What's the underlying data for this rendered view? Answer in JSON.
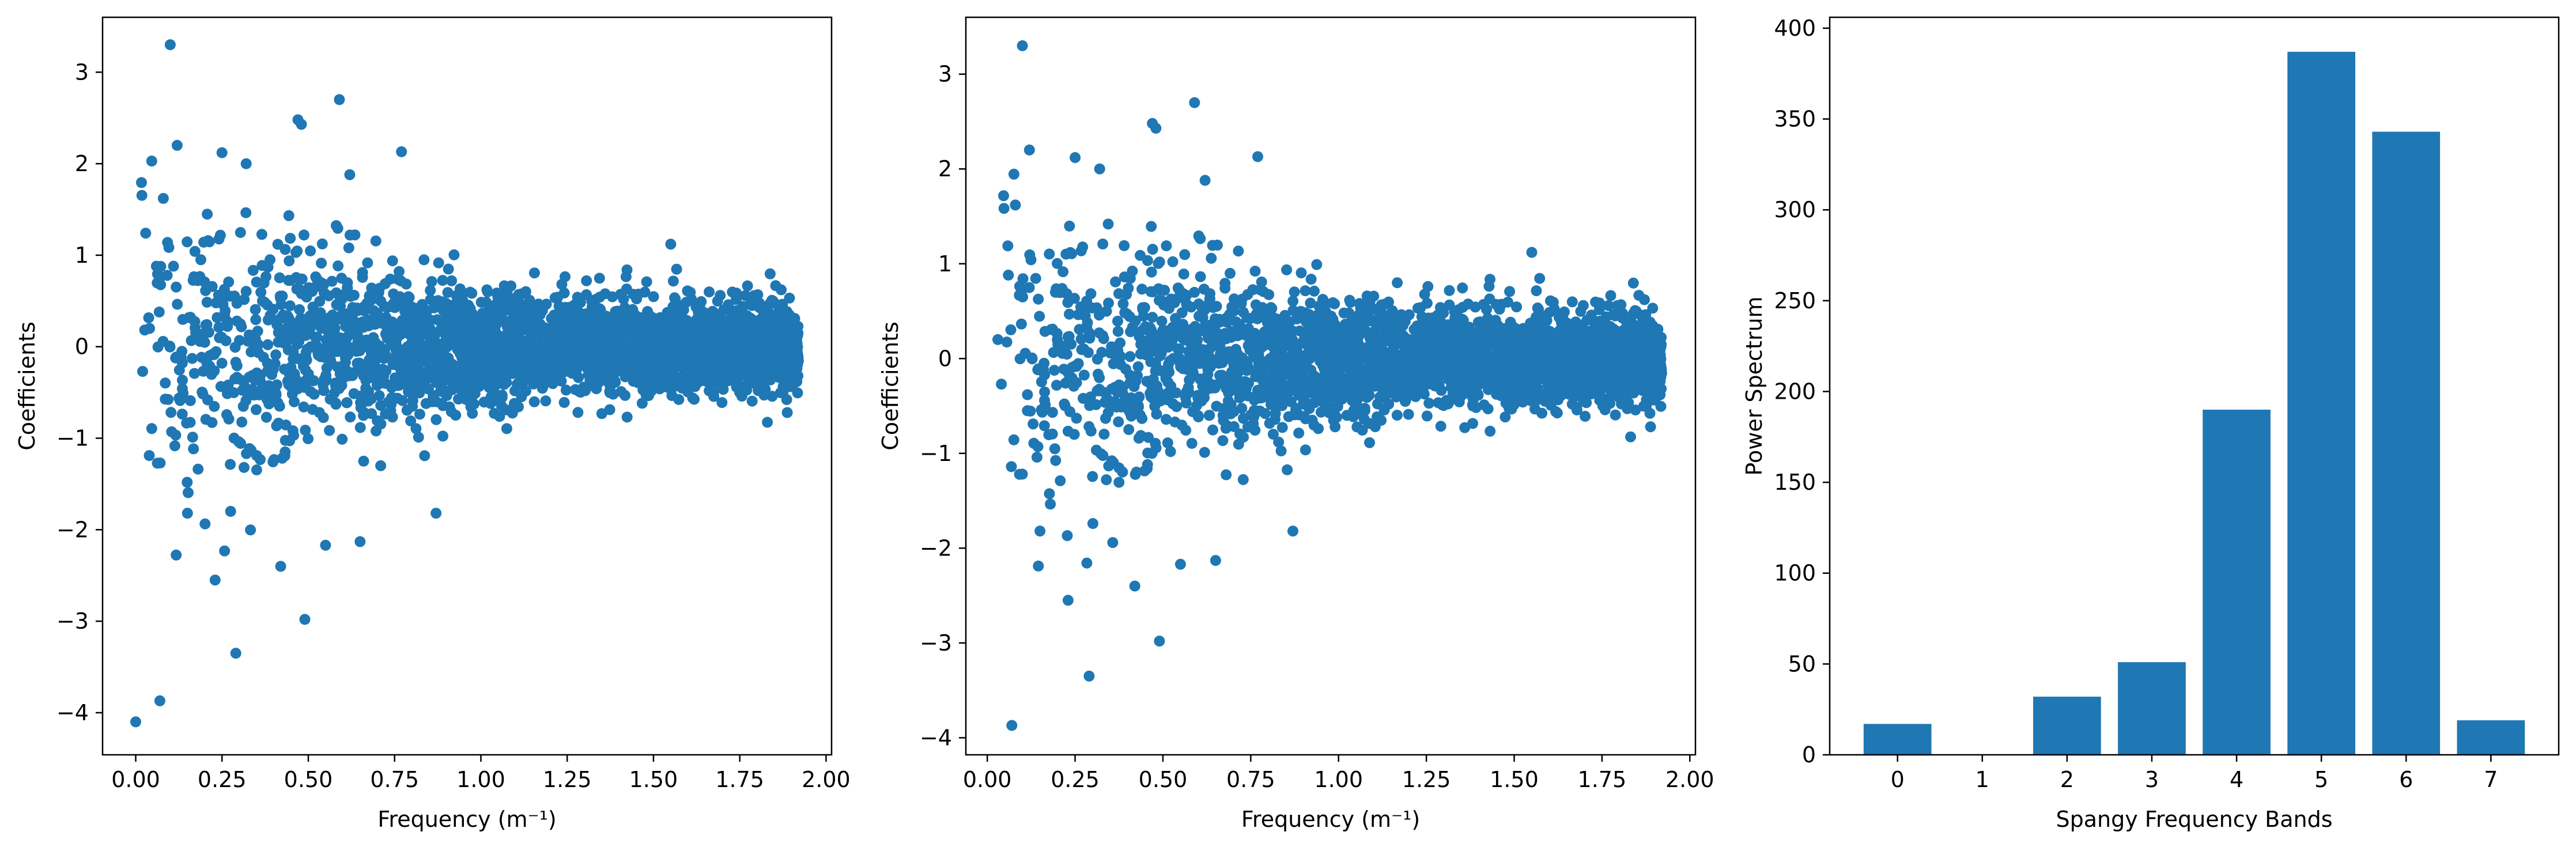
{
  "colors": {
    "marker": "#1f77b4",
    "bar": "#1f77b4",
    "axis": "#000000",
    "background": "#ffffff"
  },
  "chart_data": [
    {
      "type": "scatter",
      "title": "",
      "xlabel": "Frequency (m⁻¹)",
      "ylabel": "Coefficients",
      "xlim": [
        -0.096,
        2.016
      ],
      "ylim": [
        -4.46,
        3.6
      ],
      "x_ticks": [
        0.0,
        0.25,
        0.5,
        0.75,
        1.0,
        1.25,
        1.5,
        1.75,
        2.0
      ],
      "x_tick_labels": [
        "0.00",
        "0.25",
        "0.50",
        "0.75",
        "1.00",
        "1.25",
        "1.50",
        "1.75",
        "2.00"
      ],
      "y_ticks": [
        -4,
        -3,
        -2,
        -1,
        0,
        1,
        2,
        3
      ],
      "y_tick_labels": [
        "−4",
        "−3",
        "−2",
        "−1",
        "0",
        "1",
        "2",
        "3"
      ],
      "grid": false,
      "legend": "none",
      "point_count_approx": 3000,
      "x_range": [
        0.0,
        1.92
      ],
      "envelope_note": "coefficients widely spread (about −4 to 3) at low frequency, narrowing to about ±0.7 near 1.9",
      "points": [
        {
          "x": 0.0,
          "y": -4.1
        },
        {
          "x": 0.07,
          "y": -3.87
        },
        {
          "x": 0.29,
          "y": -3.35
        },
        {
          "x": 0.1,
          "y": 3.3
        },
        {
          "x": 0.49,
          "y": -2.98
        },
        {
          "x": 0.23,
          "y": -2.55
        },
        {
          "x": 0.59,
          "y": 2.7
        },
        {
          "x": 0.47,
          "y": 2.48
        },
        {
          "x": 0.48,
          "y": 2.43
        },
        {
          "x": 0.12,
          "y": 2.2
        },
        {
          "x": 0.25,
          "y": 2.12
        },
        {
          "x": 0.77,
          "y": 2.13
        },
        {
          "x": 0.32,
          "y": 2.0
        },
        {
          "x": 0.08,
          "y": 1.62
        },
        {
          "x": 0.62,
          "y": 1.88
        },
        {
          "x": 0.15,
          "y": -1.82
        },
        {
          "x": 0.87,
          "y": -1.82
        },
        {
          "x": 0.42,
          "y": -2.4
        },
        {
          "x": 0.55,
          "y": -2.17
        },
        {
          "x": 0.65,
          "y": -2.13
        },
        {
          "x": 1.55,
          "y": 1.12
        },
        {
          "x": 0.04,
          "y": 0.2
        },
        {
          "x": 0.02,
          "y": -0.27
        },
        {
          "x": 0.06,
          "y": 0.88
        }
      ]
    },
    {
      "type": "scatter",
      "title": "",
      "xlabel": "Frequency (m⁻¹)",
      "ylabel": "Coefficients",
      "xlim": [
        -0.061,
        2.016
      ],
      "ylim": [
        -4.18,
        3.6
      ],
      "x_ticks": [
        0.0,
        0.25,
        0.5,
        0.75,
        1.0,
        1.25,
        1.5,
        1.75,
        2.0
      ],
      "x_tick_labels": [
        "0.00",
        "0.25",
        "0.50",
        "0.75",
        "1.00",
        "1.25",
        "1.50",
        "1.75",
        "2.00"
      ],
      "y_ticks": [
        -4,
        -3,
        -2,
        -1,
        0,
        1,
        2,
        3
      ],
      "y_tick_labels": [
        "−4",
        "−3",
        "−2",
        "−1",
        "0",
        "1",
        "2",
        "3"
      ],
      "grid": false,
      "legend": "none",
      "point_count_approx": 3000,
      "x_range": [
        0.03,
        1.92
      ],
      "envelope_note": "same as first panel with the lowest-frequency point removed",
      "points": [
        {
          "x": 0.07,
          "y": -3.87
        },
        {
          "x": 0.29,
          "y": -3.35
        },
        {
          "x": 0.1,
          "y": 3.3
        },
        {
          "x": 0.49,
          "y": -2.98
        },
        {
          "x": 0.23,
          "y": -2.55
        },
        {
          "x": 0.59,
          "y": 2.7
        },
        {
          "x": 0.47,
          "y": 2.48
        },
        {
          "x": 0.48,
          "y": 2.43
        },
        {
          "x": 0.12,
          "y": 2.2
        },
        {
          "x": 0.25,
          "y": 2.12
        },
        {
          "x": 0.77,
          "y": 2.13
        },
        {
          "x": 0.32,
          "y": 2.0
        },
        {
          "x": 0.08,
          "y": 1.62
        },
        {
          "x": 0.62,
          "y": 1.88
        },
        {
          "x": 0.15,
          "y": -1.82
        },
        {
          "x": 0.87,
          "y": -1.82
        },
        {
          "x": 0.42,
          "y": -2.4
        },
        {
          "x": 0.55,
          "y": -2.17
        },
        {
          "x": 0.65,
          "y": -2.13
        },
        {
          "x": 1.55,
          "y": 1.12
        },
        {
          "x": 0.03,
          "y": 0.2
        },
        {
          "x": 0.04,
          "y": -0.27
        },
        {
          "x": 0.06,
          "y": 0.88
        }
      ]
    },
    {
      "type": "bar",
      "title": "",
      "xlabel": "Spangy Frequency Bands",
      "ylabel": "Power Spectrum",
      "categories": [
        "0",
        "1",
        "2",
        "3",
        "4",
        "5",
        "6",
        "7"
      ],
      "values": [
        17,
        0,
        32,
        51,
        190,
        387,
        343,
        19
      ],
      "xlim": [
        -0.8,
        7.8
      ],
      "ylim": [
        0,
        406
      ],
      "y_ticks": [
        0,
        50,
        100,
        150,
        200,
        250,
        300,
        350,
        400
      ],
      "y_tick_labels": [
        "0",
        "50",
        "100",
        "150",
        "200",
        "250",
        "300",
        "350",
        "400"
      ],
      "grid": false,
      "legend": "none"
    }
  ]
}
